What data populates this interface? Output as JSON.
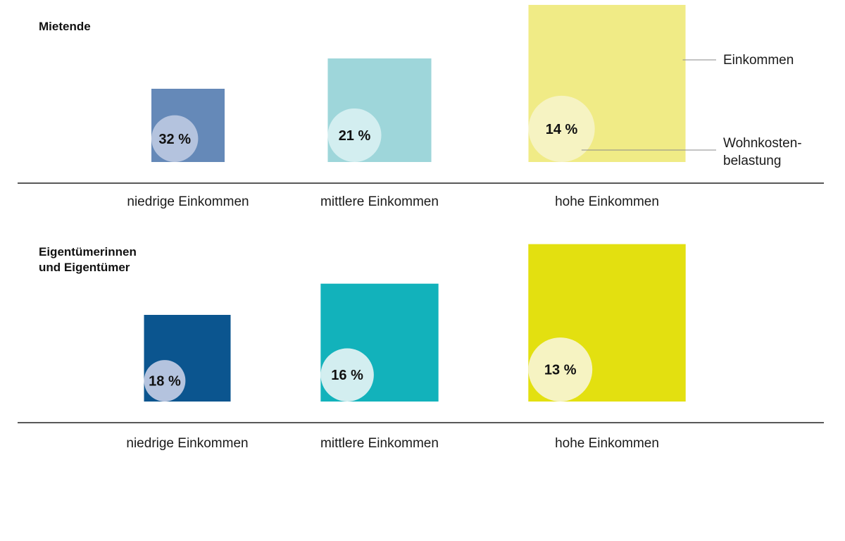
{
  "chart_data": {
    "type": "area-square",
    "unit": "%",
    "legend": {
      "outer": "Einkommen",
      "inner": [
        "Wohnkosten-",
        "belastung"
      ]
    },
    "groups": [
      {
        "title": "Mietende",
        "categories": [
          "niedrige Einkommen",
          "mittlere Einkommen",
          "hohe Einkommen"
        ],
        "values": [
          32,
          21,
          14
        ],
        "value_labels": [
          "32 %",
          "21 %",
          "14 %"
        ],
        "income_relative": [
          1.0,
          2.0,
          4.6
        ],
        "colors": [
          "#6589b8",
          "#9ed6da",
          "#f0eb86"
        ],
        "circle_colors": [
          "#b4c3de",
          "#d3eef0",
          "#f6f3c2"
        ]
      },
      {
        "title": "Eigentümerinnen\nund Eigentümer",
        "categories": [
          "niedrige Einkommen",
          "mittlere Einkommen",
          "hohe Einkommen"
        ],
        "values": [
          18,
          16,
          13
        ],
        "value_labels": [
          "18 %",
          "16 %",
          "13 %"
        ],
        "income_relative": [
          1.0,
          1.85,
          3.3
        ],
        "colors": [
          "#0b558f",
          "#12b2bb",
          "#e3e010"
        ],
        "circle_colors": [
          "#b4c3de",
          "#d3eef0",
          "#f6f3c2"
        ]
      }
    ]
  }
}
